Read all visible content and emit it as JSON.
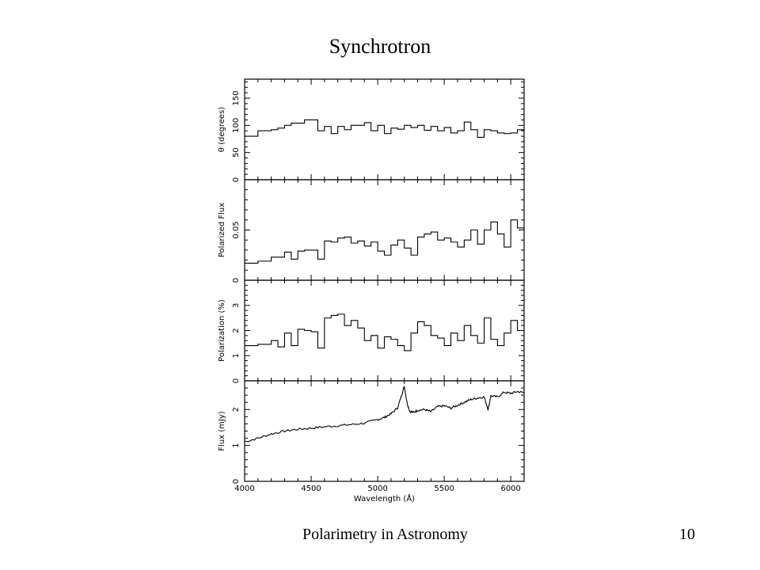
{
  "slide": {
    "title": "Synchrotron",
    "footer": "Polarimetry in Astronomy",
    "page_number": "10"
  },
  "chart_data": [
    {
      "type": "line",
      "panel": "theta",
      "ylabel": "θ (degrees)",
      "ylim": [
        0,
        185
      ],
      "yticks": [
        0,
        50,
        100,
        150
      ],
      "ytick_labels": [
        "0",
        "50",
        "100",
        "150"
      ],
      "steps": true,
      "x": [
        4000,
        4100,
        4150,
        4200,
        4250,
        4300,
        4350,
        4400,
        4450,
        4500,
        4550,
        4600,
        4650,
        4700,
        4750,
        4800,
        4850,
        4900,
        4950,
        5000,
        5050,
        5100,
        5150,
        5200,
        5250,
        5300,
        5350,
        5400,
        5450,
        5500,
        5550,
        5600,
        5650,
        5700,
        5750,
        5800,
        5850,
        5900,
        5950,
        6000,
        6050,
        6100
      ],
      "y": [
        80,
        90,
        90,
        92,
        95,
        100,
        104,
        104,
        110,
        110,
        90,
        98,
        85,
        98,
        92,
        100,
        100,
        105,
        90,
        100,
        85,
        95,
        93,
        100,
        96,
        100,
        91,
        98,
        90,
        96,
        86,
        90,
        106,
        92,
        78,
        92,
        90,
        86,
        85,
        86,
        92,
        92
      ]
    },
    {
      "type": "line",
      "panel": "polarized_flux",
      "ylabel": "Polarized Flux",
      "ylim": [
        0,
        0.1
      ],
      "yticks": [
        0,
        0.05
      ],
      "ytick_labels": [
        "0",
        "0.05"
      ],
      "steps": true,
      "x": [
        4000,
        4100,
        4150,
        4200,
        4250,
        4300,
        4350,
        4400,
        4450,
        4500,
        4550,
        4600,
        4650,
        4700,
        4750,
        4800,
        4850,
        4900,
        4950,
        5000,
        5050,
        5100,
        5150,
        5200,
        5250,
        5300,
        5350,
        5400,
        5450,
        5500,
        5550,
        5600,
        5650,
        5700,
        5750,
        5800,
        5850,
        5900,
        5950,
        6000,
        6050,
        6100
      ],
      "y": [
        0.017,
        0.019,
        0.019,
        0.023,
        0.023,
        0.028,
        0.021,
        0.029,
        0.03,
        0.03,
        0.021,
        0.039,
        0.038,
        0.042,
        0.043,
        0.037,
        0.039,
        0.034,
        0.038,
        0.029,
        0.025,
        0.035,
        0.04,
        0.032,
        0.025,
        0.043,
        0.046,
        0.048,
        0.04,
        0.042,
        0.038,
        0.033,
        0.04,
        0.05,
        0.036,
        0.05,
        0.058,
        0.046,
        0.033,
        0.06,
        0.052,
        0.052
      ]
    },
    {
      "type": "line",
      "panel": "polarization",
      "ylabel": "Polarization (%)",
      "ylim": [
        0,
        4
      ],
      "yticks": [
        0,
        1,
        2,
        3
      ],
      "ytick_labels": [
        "0",
        "1",
        "2",
        "3"
      ],
      "steps": true,
      "x": [
        4000,
        4100,
        4150,
        4200,
        4250,
        4300,
        4350,
        4400,
        4450,
        4500,
        4550,
        4600,
        4650,
        4700,
        4750,
        4800,
        4850,
        4900,
        4950,
        5000,
        5050,
        5100,
        5150,
        5200,
        5250,
        5300,
        5350,
        5400,
        5450,
        5500,
        5550,
        5600,
        5650,
        5700,
        5750,
        5800,
        5850,
        5900,
        5950,
        6000,
        6050,
        6100
      ],
      "y": [
        1.4,
        1.45,
        1.45,
        1.6,
        1.35,
        1.9,
        1.4,
        2.05,
        2.0,
        1.95,
        1.3,
        2.5,
        2.6,
        2.65,
        2.2,
        2.4,
        2.1,
        1.6,
        1.8,
        1.3,
        1.75,
        1.65,
        1.4,
        1.2,
        1.9,
        2.35,
        2.2,
        1.8,
        1.7,
        1.4,
        1.9,
        1.6,
        2.2,
        1.8,
        1.5,
        2.5,
        1.65,
        1.4,
        1.9,
        2.4,
        2.0,
        2.0
      ]
    },
    {
      "type": "line",
      "panel": "flux",
      "ylabel": "Flux (mJy)",
      "xlabel": "Wavelength (Å)",
      "xlim": [
        4000,
        6100
      ],
      "xticks": [
        4000,
        4500,
        5000,
        5500,
        6000
      ],
      "xtick_labels": [
        "4000",
        "4500",
        "5000",
        "5500",
        "6000"
      ],
      "ylim": [
        0,
        2.8
      ],
      "yticks": [
        0,
        1,
        2
      ],
      "ytick_labels": [
        "0",
        "1",
        "2"
      ],
      "x": [
        4000,
        4100,
        4200,
        4300,
        4400,
        4500,
        4600,
        4700,
        4800,
        4900,
        5000,
        5050,
        5100,
        5150,
        5180,
        5200,
        5220,
        5240,
        5270,
        5300,
        5350,
        5400,
        5450,
        5500,
        5550,
        5600,
        5650,
        5700,
        5750,
        5800,
        5830,
        5850,
        5900,
        5950,
        6000,
        6050,
        6100
      ],
      "y": [
        1.1,
        1.2,
        1.32,
        1.4,
        1.45,
        1.48,
        1.52,
        1.55,
        1.58,
        1.62,
        1.72,
        1.78,
        1.88,
        2.05,
        2.4,
        2.65,
        2.2,
        1.95,
        1.92,
        1.98,
        2.0,
        1.94,
        2.08,
        2.1,
        2.04,
        2.12,
        2.2,
        2.28,
        2.32,
        2.35,
        2.0,
        2.38,
        2.35,
        2.48,
        2.45,
        2.5,
        2.47
      ]
    }
  ]
}
